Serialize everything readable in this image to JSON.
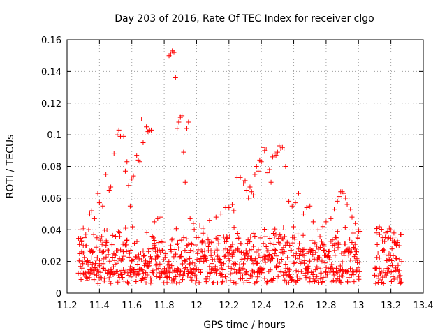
{
  "chart_data": {
    "type": "scatter",
    "title": "Day 203 of 2016, Rate Of TEC Index for receiver clgo",
    "xlabel": "GPS time / hours",
    "ylabel": "ROTI / TECUs",
    "xlim": [
      11.2,
      13.4
    ],
    "ylim": [
      0,
      0.16
    ],
    "x_ticks": [
      "11.2",
      "11.4",
      "11.6",
      "11.8",
      "12",
      "12.2",
      "12.4",
      "12.6",
      "12.8",
      "13",
      "13.2",
      "13.4"
    ],
    "y_ticks": [
      "0",
      "0.02",
      "0.04",
      "0.06",
      "0.08",
      "0.1",
      "0.12",
      "0.14",
      "0.16"
    ],
    "grid": true,
    "marker": "+",
    "color": "#ff0000",
    "series": [
      {
        "name": "ROTI",
        "points": [
          [
            11.28,
            0.04
          ],
          [
            11.29,
            0.033
          ],
          [
            11.3,
            0.041
          ],
          [
            11.31,
            0.035
          ],
          [
            11.32,
            0.03
          ],
          [
            11.34,
            0.05
          ],
          [
            11.35,
            0.052
          ],
          [
            11.37,
            0.047
          ],
          [
            11.39,
            0.063
          ],
          [
            11.4,
            0.057
          ],
          [
            11.42,
            0.055
          ],
          [
            11.44,
            0.075
          ],
          [
            11.46,
            0.065
          ],
          [
            11.47,
            0.067
          ],
          [
            11.49,
            0.088
          ],
          [
            11.51,
            0.1
          ],
          [
            11.52,
            0.103
          ],
          [
            11.53,
            0.099
          ],
          [
            11.55,
            0.099
          ],
          [
            11.56,
            0.077
          ],
          [
            11.57,
            0.083
          ],
          [
            11.58,
            0.068
          ],
          [
            11.59,
            0.055
          ],
          [
            11.6,
            0.072
          ],
          [
            11.61,
            0.074
          ],
          [
            11.63,
            0.087
          ],
          [
            11.64,
            0.084
          ],
          [
            11.65,
            0.083
          ],
          [
            11.66,
            0.11
          ],
          [
            11.67,
            0.095
          ],
          [
            11.69,
            0.105
          ],
          [
            11.7,
            0.102
          ],
          [
            11.71,
            0.103
          ],
          [
            11.72,
            0.103
          ],
          [
            11.74,
            0.045
          ],
          [
            11.76,
            0.047
          ],
          [
            11.78,
            0.048
          ],
          [
            11.83,
            0.15
          ],
          [
            11.84,
            0.151
          ],
          [
            11.85,
            0.153
          ],
          [
            11.86,
            0.152
          ],
          [
            11.87,
            0.136
          ],
          [
            11.88,
            0.104
          ],
          [
            11.89,
            0.108
          ],
          [
            11.9,
            0.111
          ],
          [
            11.91,
            0.112
          ],
          [
            11.92,
            0.089
          ],
          [
            11.93,
            0.07
          ],
          [
            11.94,
            0.104
          ],
          [
            11.95,
            0.108
          ],
          [
            11.96,
            0.047
          ],
          [
            11.98,
            0.044
          ],
          [
            12.02,
            0.043
          ],
          [
            12.04,
            0.041
          ],
          [
            12.08,
            0.046
          ],
          [
            12.12,
            0.048
          ],
          [
            12.15,
            0.05
          ],
          [
            12.18,
            0.054
          ],
          [
            12.2,
            0.054
          ],
          [
            12.22,
            0.056
          ],
          [
            12.23,
            0.052
          ],
          [
            12.25,
            0.073
          ],
          [
            12.27,
            0.073
          ],
          [
            12.29,
            0.069
          ],
          [
            12.3,
            0.071
          ],
          [
            12.31,
            0.065
          ],
          [
            12.32,
            0.06
          ],
          [
            12.33,
            0.067
          ],
          [
            12.34,
            0.064
          ],
          [
            12.35,
            0.062
          ],
          [
            12.36,
            0.075
          ],
          [
            12.37,
            0.08
          ],
          [
            12.38,
            0.077
          ],
          [
            12.39,
            0.084
          ],
          [
            12.4,
            0.083
          ],
          [
            12.41,
            0.092
          ],
          [
            12.42,
            0.09
          ],
          [
            12.43,
            0.091
          ],
          [
            12.44,
            0.076
          ],
          [
            12.45,
            0.078
          ],
          [
            12.46,
            0.07
          ],
          [
            12.47,
            0.086
          ],
          [
            12.48,
            0.088
          ],
          [
            12.49,
            0.087
          ],
          [
            12.5,
            0.089
          ],
          [
            12.51,
            0.093
          ],
          [
            12.52,
            0.091
          ],
          [
            12.53,
            0.092
          ],
          [
            12.54,
            0.091
          ],
          [
            12.55,
            0.08
          ],
          [
            12.57,
            0.058
          ],
          [
            12.59,
            0.055
          ],
          [
            12.61,
            0.057
          ],
          [
            12.63,
            0.063
          ],
          [
            12.66,
            0.05
          ],
          [
            12.68,
            0.054
          ],
          [
            12.7,
            0.055
          ],
          [
            12.72,
            0.045
          ],
          [
            12.75,
            0.04
          ],
          [
            12.78,
            0.042
          ],
          [
            12.8,
            0.045
          ],
          [
            12.83,
            0.047
          ],
          [
            12.85,
            0.053
          ],
          [
            12.87,
            0.058
          ],
          [
            12.88,
            0.061
          ],
          [
            12.89,
            0.064
          ],
          [
            12.9,
            0.064
          ],
          [
            12.91,
            0.063
          ],
          [
            12.92,
            0.06
          ],
          [
            12.93,
            0.056
          ],
          [
            12.95,
            0.053
          ],
          [
            12.96,
            0.048
          ],
          [
            12.98,
            0.044
          ],
          [
            13.0,
            0.04
          ],
          [
            13.01,
            0.039
          ],
          [
            13.11,
            0.038
          ],
          [
            13.13,
            0.037
          ],
          [
            13.15,
            0.035
          ],
          [
            13.17,
            0.038
          ],
          [
            13.18,
            0.039
          ],
          [
            13.19,
            0.041
          ],
          [
            13.2,
            0.04
          ],
          [
            13.21,
            0.033
          ],
          [
            13.22,
            0.032
          ],
          [
            13.23,
            0.031
          ],
          [
            13.24,
            0.033
          ],
          [
            13.25,
            0.03
          ],
          [
            13.26,
            0.037
          ]
        ]
      }
    ]
  }
}
